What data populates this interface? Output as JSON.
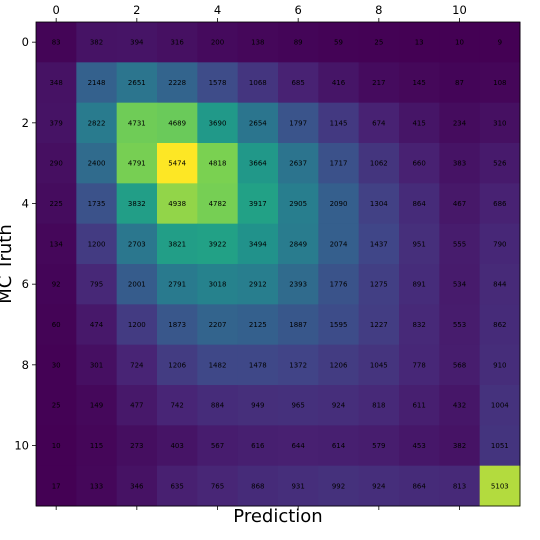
{
  "chart_data": {
    "type": "heatmap",
    "title": "",
    "xlabel": "Prediction",
    "ylabel": "MC Truth",
    "x_ticks": [
      0,
      2,
      4,
      6,
      8,
      10
    ],
    "y_ticks": [
      0,
      2,
      4,
      6,
      8,
      10
    ],
    "x_tick_position": "top",
    "colormap": "viridis",
    "grid": false,
    "legend": "none",
    "rows": 12,
    "cols": 12,
    "values": [
      [
        83,
        382,
        394,
        316,
        200,
        138,
        89,
        59,
        25,
        13,
        10,
        9
      ],
      [
        348,
        2148,
        2651,
        2228,
        1578,
        1068,
        685,
        416,
        217,
        145,
        87,
        108
      ],
      [
        379,
        2822,
        4731,
        4689,
        3690,
        2654,
        1797,
        1145,
        674,
        415,
        234,
        310
      ],
      [
        290,
        2400,
        4791,
        5474,
        4818,
        3664,
        2637,
        1717,
        1062,
        660,
        383,
        526
      ],
      [
        225,
        1735,
        3832,
        4938,
        4782,
        3917,
        2905,
        2090,
        1304,
        864,
        467,
        686
      ],
      [
        134,
        1200,
        2703,
        3821,
        3922,
        3494,
        2849,
        2074,
        1437,
        951,
        555,
        790
      ],
      [
        92,
        795,
        2001,
        2791,
        3018,
        2912,
        2393,
        1776,
        1275,
        891,
        534,
        844
      ],
      [
        60,
        474,
        1200,
        1873,
        2207,
        2125,
        1887,
        1595,
        1227,
        832,
        553,
        862
      ],
      [
        30,
        301,
        724,
        1206,
        1482,
        1478,
        1372,
        1206,
        1045,
        778,
        568,
        910
      ],
      [
        25,
        149,
        477,
        742,
        884,
        949,
        965,
        924,
        818,
        611,
        432,
        1004
      ],
      [
        10,
        115,
        273,
        403,
        567,
        616,
        644,
        614,
        579,
        453,
        382,
        1051
      ],
      [
        17,
        133,
        346,
        635,
        765,
        868,
        931,
        992,
        924,
        864,
        813,
        5103
      ]
    ]
  }
}
